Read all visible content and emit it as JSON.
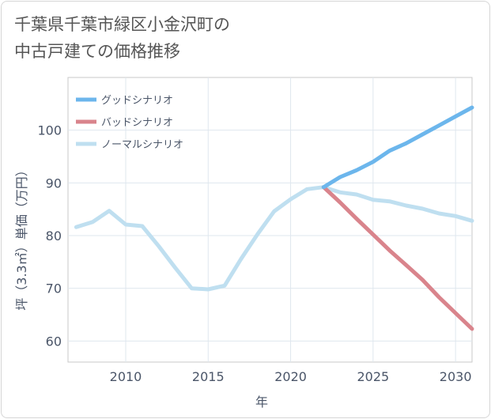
{
  "title": {
    "line1": "千葉県千葉市緑区小金沢町の",
    "line2": "中古戸建ての価格推移"
  },
  "chart_data": {
    "type": "line",
    "title": "千葉県千葉市緑区小金沢町の中古戸建ての価格推移",
    "xlabel": "年",
    "ylabel": "坪（3.3㎡）単価（万円）",
    "xlim": [
      2006.5,
      2031
    ],
    "ylim": [
      56,
      110
    ],
    "xticks": [
      2010,
      2015,
      2020,
      2025,
      2030
    ],
    "yticks": [
      60,
      70,
      80,
      90,
      100
    ],
    "grid": true,
    "legend_position": "top-left",
    "series": [
      {
        "name": "グッドシナリオ",
        "color": "#6cb6ec",
        "x": [
          2022,
          2023,
          2024,
          2025,
          2026,
          2027,
          2028,
          2029,
          2030,
          2031
        ],
        "y": [
          89.2,
          91.1,
          92.4,
          94.0,
          96.1,
          97.5,
          99.2,
          100.9,
          102.6,
          104.3
        ]
      },
      {
        "name": "バッドシナリオ",
        "color": "#d9848c",
        "x": [
          2022,
          2023,
          2024,
          2025,
          2026,
          2027,
          2028,
          2029,
          2030,
          2031
        ],
        "y": [
          89.2,
          86.3,
          83.2,
          80.2,
          77.2,
          74.4,
          71.6,
          68.3,
          65.3,
          62.3
        ]
      },
      {
        "name": "ノーマルシナリオ",
        "color": "#bfdff0",
        "x": [
          2007,
          2008,
          2009,
          2010,
          2011,
          2012,
          2013,
          2014,
          2015,
          2016,
          2017,
          2018,
          2019,
          2020,
          2021,
          2022,
          2023,
          2024,
          2025,
          2026,
          2027,
          2028,
          2029,
          2030,
          2031
        ],
        "y": [
          81.6,
          82.6,
          84.7,
          82.1,
          81.8,
          78.0,
          73.9,
          70.0,
          69.8,
          70.5,
          75.6,
          80.3,
          84.6,
          86.9,
          88.8,
          89.2,
          88.2,
          87.8,
          86.8,
          86.5,
          85.7,
          85.1,
          84.2,
          83.7,
          82.8
        ]
      }
    ]
  }
}
